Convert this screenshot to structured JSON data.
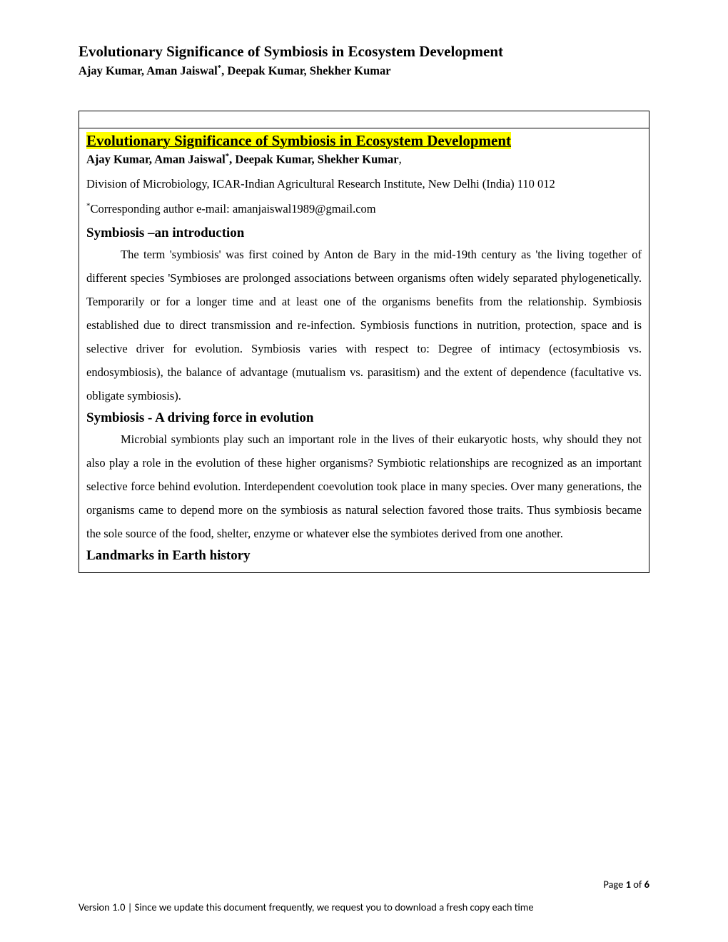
{
  "header": {
    "title": "Evolutionary Significance of Symbiosis in Ecosystem Development",
    "authors_part1": "Ajay Kumar, Aman Jaiswal",
    "authors_superscript": "*",
    "authors_part2": ", Deepak Kumar, Shekher Kumar"
  },
  "content_box": {
    "highlighted_title": "Evolutionary Significance of Symbiosis in Ecosystem Development",
    "authors_part1": "Ajay Kumar, Aman Jaiswal",
    "authors_superscript": "*",
    "authors_part2": ", Deepak Kumar, Shekher Kumar",
    "authors_trailing": ",",
    "affiliation": "Division of Microbiology, ICAR-Indian Agricultural Research Institute, New Delhi (India) 110 012",
    "corresponding_superscript": "*",
    "corresponding_text": "Corresponding author e-mail: amanjaiswal1989@gmail.com",
    "sections": {
      "section1_heading": "Symbiosis –an introduction",
      "section1_body": "The term 'symbiosis' was first coined by Anton de Bary in the mid-19th century as 'the living together of different species 'Symbioses are prolonged associations between organisms often widely separated phylogenetically. Temporarily or for a longer time and at least one of the organisms benefits from the relationship. Symbiosis established due to direct transmission and re-infection. Symbiosis functions in nutrition, protection, space and is selective driver for evolution. Symbiosis varies with respect to: Degree of intimacy (ectosymbiosis vs. endosymbiosis), the balance of advantage (mutualism vs. parasitism) and the extent of dependence (facultative vs. obligate symbiosis).",
      "section2_heading": "Symbiosis - A driving force in evolution",
      "section2_body": "Microbial symbionts play such an important role in the lives of their eukaryotic hosts, why should they not also play a role in the evolution of these higher organisms? Symbiotic relationships are recognized as an important selective force behind evolution. Interdependent coevolution took place in many species. Over many generations, the organisms came to depend more on the symbiosis as natural selection favored those traits. Thus symbiosis became the sole source of the food, shelter, enzyme or whatever else the symbiotes derived from one another.",
      "section3_heading": "Landmarks in Earth history"
    }
  },
  "footer": {
    "page_label": "Page ",
    "page_current": "1",
    "page_of": " of ",
    "page_total": "6",
    "version_text": "Version 1.0 | Since we update this document frequently, we request you to download a fresh copy each time"
  },
  "colors": {
    "highlight_bg": "#ffff00",
    "text": "#000000",
    "background": "#ffffff",
    "border": "#000000"
  },
  "typography": {
    "body_font": "Times New Roman",
    "footer_font": "Calibri",
    "title_fontsize": 21,
    "authors_fontsize": 16.5,
    "body_fontsize": 16.5,
    "heading_fontsize": 19,
    "footer_fontsize": 14.5
  }
}
